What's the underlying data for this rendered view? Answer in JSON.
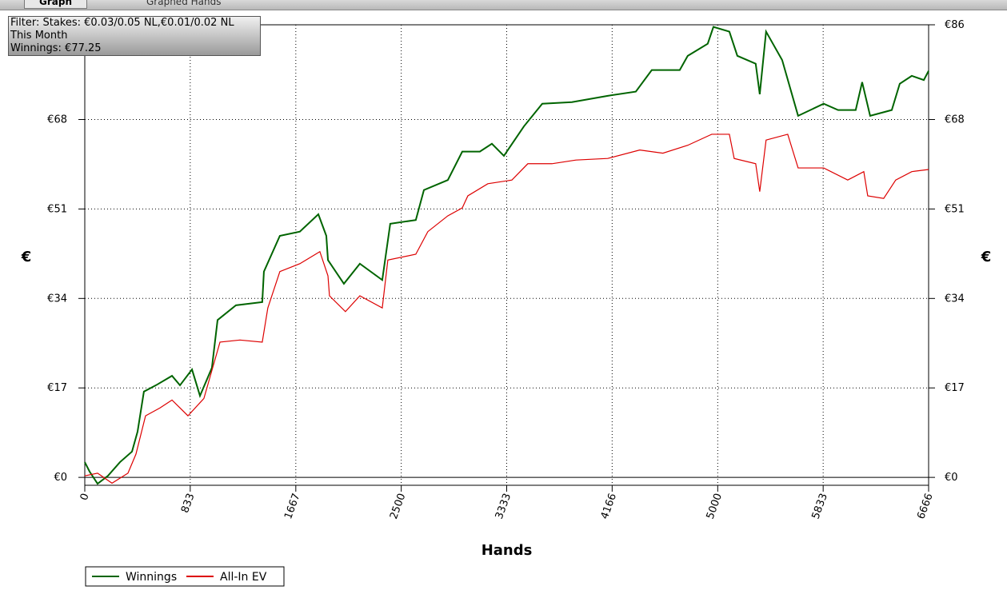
{
  "tabs": [
    "Graph",
    "Graphed Hands"
  ],
  "chart_data": {
    "type": "line",
    "info": [
      "Filter: Stakes: €0.03/0.05 NL,€0.01/0.02 NL",
      "This Month",
      "Winnings: €77.25"
    ],
    "xlabel": "Hands",
    "ylabel": "€",
    "xlim": [
      0,
      6666
    ],
    "ylim": [
      -1.5,
      86
    ],
    "xticks": [
      0,
      833,
      1667,
      2500,
      3333,
      4166,
      5000,
      5833,
      6666
    ],
    "yticks": [
      {
        "value": 0,
        "label": "€0"
      },
      {
        "value": 17,
        "label": "€17"
      },
      {
        "value": 34,
        "label": "€34"
      },
      {
        "value": 51,
        "label": "€51"
      },
      {
        "value": 68,
        "label": "€68"
      },
      {
        "value": 86,
        "label": "€86"
      }
    ],
    "grid": true,
    "series": [
      {
        "name": "Winnings",
        "color": "#006400",
        "x": [
          0,
          38,
          101,
          183,
          278,
          373,
          417,
          467,
          562,
          689,
          752,
          847,
          910,
          1004,
          1049,
          1194,
          1402,
          1415,
          1541,
          1699,
          1845,
          1908,
          1921,
          2047,
          2173,
          2350,
          2413,
          2615,
          2679,
          2868,
          2982,
          3121,
          3216,
          3311,
          3469,
          3614,
          3848,
          4131,
          4353,
          4479,
          4700,
          4763,
          4921,
          4966,
          5092,
          5155,
          5300,
          5332,
          5382,
          5509,
          5635,
          5837,
          5951,
          6090,
          6141,
          6204,
          6375,
          6438,
          6533,
          6628,
          6666
        ],
        "values": [
          2.9,
          1.1,
          -1.2,
          0.3,
          2.9,
          4.9,
          8.7,
          16.3,
          17.5,
          19.3,
          17.5,
          20.5,
          15.5,
          20.8,
          29.9,
          32.7,
          33.3,
          39.1,
          45.9,
          46.7,
          50.0,
          45.9,
          41.3,
          36.8,
          40.6,
          37.5,
          48.2,
          48.9,
          54.6,
          56.5,
          61.9,
          61.9,
          63.4,
          61.1,
          66.7,
          71.0,
          71.3,
          72.5,
          73.3,
          77.4,
          77.4,
          80.1,
          82.4,
          85.6,
          84.7,
          80.1,
          78.6,
          72.8,
          84.7,
          79.3,
          68.7,
          71.0,
          69.8,
          69.8,
          75.1,
          68.7,
          69.8,
          74.8,
          76.3,
          75.5,
          77.25
        ]
      },
      {
        "name": "All-In EV",
        "color": "#dd0000",
        "x": [
          0,
          101,
          215,
          341,
          404,
          480,
          594,
          689,
          752,
          815,
          941,
          1068,
          1226,
          1402,
          1446,
          1541,
          1699,
          1857,
          1921,
          1933,
          2059,
          2173,
          2350,
          2394,
          2615,
          2710,
          2868,
          2982,
          3026,
          3184,
          3374,
          3500,
          3690,
          3880,
          4131,
          4384,
          4567,
          4763,
          4953,
          5092,
          5130,
          5300,
          5332,
          5382,
          5553,
          5635,
          5837,
          6027,
          6154,
          6185,
          6311,
          6406,
          6533,
          6666
        ],
        "values": [
          0.3,
          0.8,
          -1.1,
          0.8,
          4.4,
          11.7,
          13.2,
          14.7,
          13.2,
          11.7,
          15.0,
          25.7,
          26.1,
          25.7,
          32.2,
          39.1,
          40.6,
          42.9,
          38.3,
          34.5,
          31.5,
          34.5,
          32.2,
          41.3,
          42.4,
          46.7,
          49.7,
          51.2,
          53.5,
          55.8,
          56.5,
          59.6,
          59.6,
          60.3,
          60.6,
          62.2,
          61.6,
          63.1,
          65.2,
          65.2,
          60.6,
          59.6,
          54.3,
          64.1,
          65.2,
          58.8,
          58.8,
          56.5,
          58.1,
          53.5,
          53.0,
          56.5,
          58.1,
          58.5
        ]
      }
    ]
  }
}
